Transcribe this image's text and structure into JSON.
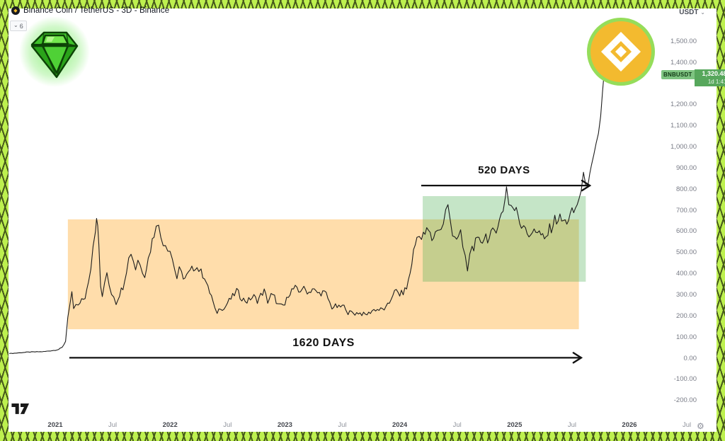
{
  "header": {
    "title": "Binance Coin / TetherUS - 3D - Binance",
    "coin_icon_glyph": "◆",
    "indicator_chip": {
      "chevron": "⌄",
      "count": "6"
    }
  },
  "top_right": {
    "currency_label": "USDT",
    "dropdown_chevron": "⌄"
  },
  "price_label": {
    "symbol": "BNBUSDT",
    "price": "1,320.48",
    "countdown": "1d 1:41"
  },
  "bottom_right": {
    "gear_glyph": "⚙"
  },
  "colors": {
    "frame_green": "#bdf04f",
    "frame_line": "#46591c",
    "line": "#1c1c1c",
    "orange_box": "#ff9800",
    "green_box": "#4caf50",
    "badge_green": "#57a75c",
    "binance_yellow": "#f3ba2f",
    "binance_ring": "#95dd5a"
  },
  "chart_data": {
    "type": "line",
    "symbol": "BNBUSDT",
    "interval": "3D",
    "exchange": "Binance",
    "grid": false,
    "legend_position": "none",
    "y_axis": {
      "range": [
        -250,
        1560
      ],
      "ticks": [
        {
          "v": 1500,
          "label": "1,500.00"
        },
        {
          "v": 1400,
          "label": "1,400.00"
        },
        {
          "v": 1200,
          "label": "1,200.00"
        },
        {
          "v": 1100,
          "label": "1,100.00"
        },
        {
          "v": 1000,
          "label": "1,000.00"
        },
        {
          "v": 900,
          "label": "900.00"
        },
        {
          "v": 800,
          "label": "800.00"
        },
        {
          "v": 700,
          "label": "700.00"
        },
        {
          "v": 600,
          "label": "600.00"
        },
        {
          "v": 500,
          "label": "500.00"
        },
        {
          "v": 400,
          "label": "400.00"
        },
        {
          "v": 300,
          "label": "300.00"
        },
        {
          "v": 200,
          "label": "200.00"
        },
        {
          "v": 100,
          "label": "100.00"
        },
        {
          "v": 0,
          "label": "0.00"
        },
        {
          "v": -100,
          "label": "-100.00"
        },
        {
          "v": -200,
          "label": "-200.00"
        }
      ]
    },
    "x_axis": {
      "range": [
        2020.55,
        2026.6
      ],
      "ticks": [
        {
          "t": 2021.0,
          "label": "2021",
          "major": true
        },
        {
          "t": 2021.5,
          "label": "Jul",
          "major": false
        },
        {
          "t": 2022.0,
          "label": "2022",
          "major": true
        },
        {
          "t": 2022.5,
          "label": "Jul",
          "major": false
        },
        {
          "t": 2023.0,
          "label": "2023",
          "major": true
        },
        {
          "t": 2023.5,
          "label": "Jul",
          "major": false
        },
        {
          "t": 2024.0,
          "label": "2024",
          "major": true
        },
        {
          "t": 2024.5,
          "label": "Jul",
          "major": false
        },
        {
          "t": 2025.0,
          "label": "2025",
          "major": true
        },
        {
          "t": 2025.5,
          "label": "Jul",
          "major": false
        },
        {
          "t": 2026.0,
          "label": "2026",
          "major": true
        },
        {
          "t": 2026.5,
          "label": "Jul",
          "major": false
        }
      ]
    },
    "series": [
      {
        "name": "BNBUSDT close",
        "points": [
          [
            2020.6,
            22
          ],
          [
            2020.66,
            24
          ],
          [
            2020.72,
            27
          ],
          [
            2020.78,
            29
          ],
          [
            2020.84,
            30
          ],
          [
            2020.9,
            31
          ],
          [
            2020.96,
            35
          ],
          [
            2021.0,
            38
          ],
          [
            2021.03,
            42
          ],
          [
            2021.06,
            50
          ],
          [
            2021.09,
            80
          ],
          [
            2021.11,
            200
          ],
          [
            2021.13,
            260
          ],
          [
            2021.145,
            300
          ],
          [
            2021.16,
            225
          ],
          [
            2021.18,
            255
          ],
          [
            2021.2,
            245
          ],
          [
            2021.23,
            270
          ],
          [
            2021.26,
            290
          ],
          [
            2021.29,
            350
          ],
          [
            2021.31,
            430
          ],
          [
            2021.33,
            530
          ],
          [
            2021.35,
            620
          ],
          [
            2021.36,
            688
          ],
          [
            2021.37,
            640
          ],
          [
            2021.38,
            560
          ],
          [
            2021.395,
            330
          ],
          [
            2021.41,
            290
          ],
          [
            2021.43,
            360
          ],
          [
            2021.45,
            390
          ],
          [
            2021.47,
            345
          ],
          [
            2021.49,
            310
          ],
          [
            2021.51,
            295
          ],
          [
            2021.53,
            262
          ],
          [
            2021.56,
            305
          ],
          [
            2021.59,
            340
          ],
          [
            2021.62,
            420
          ],
          [
            2021.64,
            470
          ],
          [
            2021.66,
            505
          ],
          [
            2021.68,
            465
          ],
          [
            2021.7,
            425
          ],
          [
            2021.72,
            470
          ],
          [
            2021.74,
            440
          ],
          [
            2021.76,
            415
          ],
          [
            2021.78,
            400
          ],
          [
            2021.81,
            470
          ],
          [
            2021.83,
            520
          ],
          [
            2021.86,
            590
          ],
          [
            2021.88,
            655
          ],
          [
            2021.9,
            615
          ],
          [
            2021.92,
            575
          ],
          [
            2021.94,
            555
          ],
          [
            2021.96,
            545
          ],
          [
            2021.98,
            528
          ],
          [
            2022.0,
            512
          ],
          [
            2022.02,
            470
          ],
          [
            2022.04,
            425
          ],
          [
            2022.06,
            378
          ],
          [
            2022.08,
            415
          ],
          [
            2022.1,
            398
          ],
          [
            2022.13,
            378
          ],
          [
            2022.16,
            398
          ],
          [
            2022.19,
            418
          ],
          [
            2022.22,
            438
          ],
          [
            2022.25,
            420
          ],
          [
            2022.27,
            405
          ],
          [
            2022.3,
            388
          ],
          [
            2022.33,
            330
          ],
          [
            2022.36,
            295
          ],
          [
            2022.39,
            228
          ],
          [
            2022.41,
            218
          ],
          [
            2022.44,
            242
          ],
          [
            2022.47,
            232
          ],
          [
            2022.5,
            262
          ],
          [
            2022.53,
            282
          ],
          [
            2022.56,
            302
          ],
          [
            2022.58,
            322
          ],
          [
            2022.61,
            292
          ],
          [
            2022.64,
            278
          ],
          [
            2022.67,
            268
          ],
          [
            2022.7,
            282
          ],
          [
            2022.73,
            292
          ],
          [
            2022.76,
            272
          ],
          [
            2022.79,
            298
          ],
          [
            2022.82,
            318
          ],
          [
            2022.85,
            268
          ],
          [
            2022.88,
            298
          ],
          [
            2022.91,
            288
          ],
          [
            2022.94,
            252
          ],
          [
            2022.97,
            246
          ],
          [
            2023.0,
            252
          ],
          [
            2023.03,
            302
          ],
          [
            2023.06,
            322
          ],
          [
            2023.09,
            332
          ],
          [
            2023.12,
            312
          ],
          [
            2023.15,
            332
          ],
          [
            2023.18,
            322
          ],
          [
            2023.21,
            312
          ],
          [
            2023.24,
            330
          ],
          [
            2023.27,
            312
          ],
          [
            2023.3,
            306
          ],
          [
            2023.33,
            312
          ],
          [
            2023.36,
            302
          ],
          [
            2023.39,
            262
          ],
          [
            2023.41,
            240
          ],
          [
            2023.44,
            246
          ],
          [
            2023.47,
            240
          ],
          [
            2023.5,
            246
          ],
          [
            2023.53,
            240
          ],
          [
            2023.55,
            215
          ],
          [
            2023.58,
            217
          ],
          [
            2023.61,
            211
          ],
          [
            2023.64,
            216
          ],
          [
            2023.67,
            210
          ],
          [
            2023.7,
            206
          ],
          [
            2023.73,
            212
          ],
          [
            2023.76,
            226
          ],
          [
            2023.79,
            231
          ],
          [
            2023.82,
            229
          ],
          [
            2023.85,
            231
          ],
          [
            2023.88,
            236
          ],
          [
            2023.91,
            262
          ],
          [
            2023.94,
            306
          ],
          [
            2023.97,
            316
          ],
          [
            2024.0,
            302
          ],
          [
            2024.03,
            312
          ],
          [
            2024.06,
            332
          ],
          [
            2024.09,
            402
          ],
          [
            2024.12,
            502
          ],
          [
            2024.15,
            572
          ],
          [
            2024.17,
            602
          ],
          [
            2024.19,
            562
          ],
          [
            2024.22,
            592
          ],
          [
            2024.25,
            602
          ],
          [
            2024.28,
            562
          ],
          [
            2024.31,
            592
          ],
          [
            2024.33,
            622
          ],
          [
            2024.36,
            602
          ],
          [
            2024.38,
            642
          ],
          [
            2024.4,
            692
          ],
          [
            2024.42,
            712
          ],
          [
            2024.44,
            652
          ],
          [
            2024.46,
            602
          ],
          [
            2024.48,
            582
          ],
          [
            2024.51,
            562
          ],
          [
            2024.53,
            582
          ],
          [
            2024.55,
            522
          ],
          [
            2024.57,
            482
          ],
          [
            2024.59,
            402
          ],
          [
            2024.61,
            502
          ],
          [
            2024.63,
            522
          ],
          [
            2024.66,
            542
          ],
          [
            2024.69,
            552
          ],
          [
            2024.72,
            562
          ],
          [
            2024.75,
            582
          ],
          [
            2024.78,
            562
          ],
          [
            2024.81,
            592
          ],
          [
            2024.84,
            622
          ],
          [
            2024.87,
            652
          ],
          [
            2024.9,
            702
          ],
          [
            2024.92,
            782
          ],
          [
            2024.93,
            808
          ],
          [
            2024.95,
            742
          ],
          [
            2024.97,
            722
          ],
          [
            2025.0,
            702
          ],
          [
            2025.03,
            682
          ],
          [
            2025.06,
            622
          ],
          [
            2025.08,
            652
          ],
          [
            2025.11,
            602
          ],
          [
            2025.14,
            562
          ],
          [
            2025.17,
            622
          ],
          [
            2025.2,
            602
          ],
          [
            2025.23,
            582
          ],
          [
            2025.26,
            552
          ],
          [
            2025.29,
            592
          ],
          [
            2025.32,
            622
          ],
          [
            2025.35,
            652
          ],
          [
            2025.38,
            662
          ],
          [
            2025.41,
            652
          ],
          [
            2025.44,
            642
          ],
          [
            2025.47,
            662
          ],
          [
            2025.5,
            682
          ],
          [
            2025.53,
            702
          ],
          [
            2025.56,
            762
          ],
          [
            2025.58,
            782
          ],
          [
            2025.6,
            842
          ],
          [
            2025.62,
            852
          ],
          [
            2025.64,
            832
          ],
          [
            2025.655,
            862
          ],
          [
            2025.67,
            902
          ],
          [
            2025.69,
            952
          ],
          [
            2025.71,
            1002
          ],
          [
            2025.73,
            1052
          ],
          [
            2025.75,
            1152
          ],
          [
            2025.765,
            1252
          ],
          [
            2025.775,
            1320
          ]
        ]
      }
    ],
    "annotations": {
      "boxes": [
        {
          "name": "accumulation-box-orange",
          "t1": 2021.11,
          "t2": 2025.56,
          "p1": 137,
          "p2": 657,
          "color": "#ff9800",
          "opacity": 0.33
        },
        {
          "name": "range-box-green",
          "t1": 2024.2,
          "t2": 2025.62,
          "p1": 362,
          "p2": 767,
          "color": "#4caf50",
          "opacity": 0.32
        }
      ],
      "arrows": [
        {
          "label": "520 DAYS",
          "t1": 2024.187,
          "t2": 2025.655,
          "p": 817,
          "label_t": 2024.908,
          "label_p": 874,
          "font_px": 15
        },
        {
          "label": "1620 DAYS",
          "t1": 2021.123,
          "t2": 2025.58,
          "p": 2,
          "label_t": 2023.337,
          "label_p": 57,
          "font_px": 16
        }
      ]
    }
  }
}
